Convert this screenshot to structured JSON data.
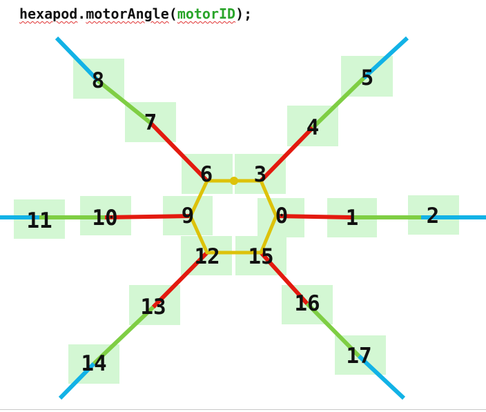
{
  "code": {
    "object": "hexapod",
    "dot": ".",
    "method": "motorAngle",
    "open_paren": "(",
    "argument": "motorID",
    "close": ");"
  },
  "colors": {
    "body": "#ddc20a",
    "inner_segment": "#e31a0f",
    "middle_segment": "#7fce44",
    "outer_segment": "#12b2e6",
    "label_box": "#d3f7d3",
    "code_argument": "#2aa52a"
  },
  "motors": [
    {
      "id": "0"
    },
    {
      "id": "1"
    },
    {
      "id": "2"
    },
    {
      "id": "3"
    },
    {
      "id": "4"
    },
    {
      "id": "5"
    },
    {
      "id": "6"
    },
    {
      "id": "7"
    },
    {
      "id": "8"
    },
    {
      "id": "9"
    },
    {
      "id": "10"
    },
    {
      "id": "11"
    },
    {
      "id": "12"
    },
    {
      "id": "13"
    },
    {
      "id": "14"
    },
    {
      "id": "15"
    },
    {
      "id": "16"
    },
    {
      "id": "17"
    }
  ]
}
